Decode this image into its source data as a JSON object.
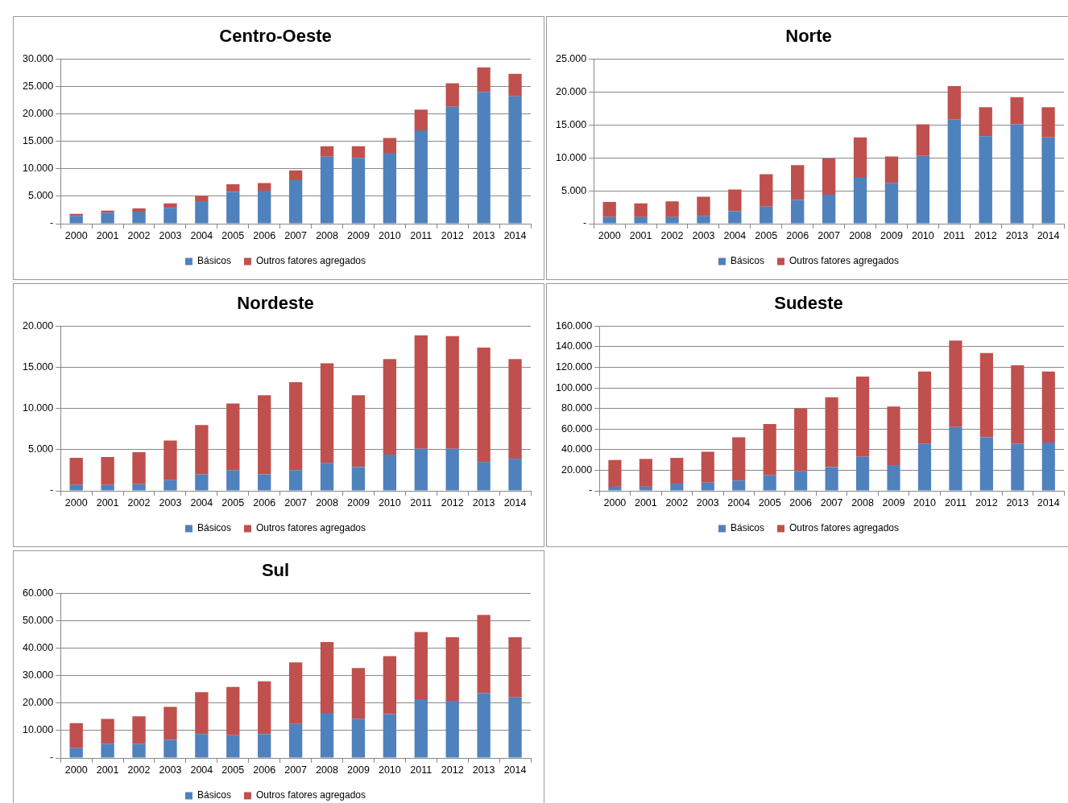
{
  "chart_data": [
    {
      "type": "bar",
      "title": "Centro-Oeste",
      "stacked": true,
      "grid": "y",
      "legend": "bottom",
      "categories": [
        "2000",
        "2001",
        "2002",
        "2003",
        "2004",
        "2005",
        "2006",
        "2007",
        "2008",
        "2009",
        "2010",
        "2011",
        "2012",
        "2013",
        "2014"
      ],
      "ylim": [
        0,
        30000
      ],
      "yticks": [
        {
          "value": 0,
          "label": "-"
        },
        {
          "value": 5000,
          "label": "5.000"
        },
        {
          "value": 10000,
          "label": "10.000"
        },
        {
          "value": 15000,
          "label": "15.000"
        },
        {
          "value": 20000,
          "label": "20.000"
        },
        {
          "value": 25000,
          "label": "25.000"
        },
        {
          "value": 30000,
          "label": "30.000"
        }
      ],
      "series": [
        {
          "name": "Básicos",
          "color": "#4f81bd",
          "values": [
            1400,
            2000,
            2200,
            2900,
            4100,
            5800,
            6000,
            7900,
            12200,
            12000,
            12900,
            17000,
            21300,
            24000,
            23200
          ]
        },
        {
          "name": "Outros fatores agregados",
          "color": "#c0504d",
          "values": [
            400,
            400,
            600,
            800,
            1000,
            1400,
            1400,
            1800,
            1900,
            2100,
            2700,
            3800,
            4300,
            4500,
            4100
          ]
        }
      ]
    },
    {
      "type": "bar",
      "title": "Norte",
      "stacked": true,
      "grid": "y",
      "legend": "bottom",
      "categories": [
        "2000",
        "2001",
        "2002",
        "2003",
        "2004",
        "2005",
        "2006",
        "2007",
        "2008",
        "2009",
        "2010",
        "2011",
        "2012",
        "2013",
        "2014"
      ],
      "ylim": [
        0,
        25000
      ],
      "yticks": [
        {
          "value": 0,
          "label": "-"
        },
        {
          "value": 5000,
          "label": "5.000"
        },
        {
          "value": 10000,
          "label": "10.000"
        },
        {
          "value": 15000,
          "label": "15.000"
        },
        {
          "value": 20000,
          "label": "20.000"
        },
        {
          "value": 25000,
          "label": "25.000"
        }
      ],
      "series": [
        {
          "name": "Básicos",
          "color": "#4f81bd",
          "values": [
            1000,
            1000,
            1000,
            1200,
            1900,
            2600,
            3600,
            4400,
            7100,
            6200,
            10300,
            15800,
            13300,
            15100,
            13100
          ]
        },
        {
          "name": "Outros fatores agregados",
          "color": "#c0504d",
          "values": [
            2300,
            2100,
            2400,
            2900,
            3300,
            4900,
            5300,
            5500,
            6000,
            4000,
            4800,
            5100,
            4400,
            4100,
            4600
          ]
        }
      ]
    },
    {
      "type": "bar",
      "title": "Nordeste",
      "stacked": true,
      "grid": "y",
      "legend": "bottom",
      "categories": [
        "2000",
        "2001",
        "2002",
        "2003",
        "2004",
        "2005",
        "2006",
        "2007",
        "2008",
        "2009",
        "2010",
        "2011",
        "2012",
        "2013",
        "2014"
      ],
      "ylim": [
        0,
        20000
      ],
      "yticks": [
        {
          "value": 0,
          "label": "-"
        },
        {
          "value": 5000,
          "label": "5.000"
        },
        {
          "value": 10000,
          "label": "10.000"
        },
        {
          "value": 15000,
          "label": "15.000"
        },
        {
          "value": 20000,
          "label": "20.000"
        }
      ],
      "series": [
        {
          "name": "Básicos",
          "color": "#4f81bd",
          "values": [
            700,
            700,
            800,
            1300,
            2000,
            2500,
            2000,
            2500,
            3400,
            2900,
            4400,
            5100,
            5100,
            3500,
            3900
          ]
        },
        {
          "name": "Outros fatores agregados",
          "color": "#c0504d",
          "values": [
            3300,
            3400,
            3900,
            4800,
            6000,
            8100,
            9600,
            10700,
            12100,
            8700,
            11600,
            13800,
            13700,
            13900,
            12100
          ]
        }
      ]
    },
    {
      "type": "bar",
      "title": "Sudeste",
      "stacked": true,
      "grid": "y",
      "legend": "bottom",
      "categories": [
        "2000",
        "2001",
        "2002",
        "2003",
        "2004",
        "2005",
        "2006",
        "2007",
        "2008",
        "2009",
        "2010",
        "2011",
        "2012",
        "2013",
        "2014"
      ],
      "ylim": [
        0,
        160000
      ],
      "yticks": [
        {
          "value": 0,
          "label": "-"
        },
        {
          "value": 20000,
          "label": "20.000"
        },
        {
          "value": 40000,
          "label": "40.000"
        },
        {
          "value": 60000,
          "label": "60.000"
        },
        {
          "value": 80000,
          "label": "80.000"
        },
        {
          "value": 100000,
          "label": "100.000"
        },
        {
          "value": 120000,
          "label": "120.000"
        },
        {
          "value": 140000,
          "label": "140.000"
        },
        {
          "value": 160000,
          "label": "160.000"
        }
      ],
      "series": [
        {
          "name": "Básicos",
          "color": "#4f81bd",
          "values": [
            4000,
            4000,
            7000,
            8000,
            10000,
            15000,
            19000,
            23000,
            33000,
            25000,
            46000,
            62000,
            52000,
            46000,
            47000
          ]
        },
        {
          "name": "Outros fatores agregados",
          "color": "#c0504d",
          "values": [
            26000,
            27000,
            25000,
            30000,
            42000,
            50000,
            61000,
            68000,
            78000,
            57000,
            70000,
            84000,
            82000,
            76000,
            69000
          ]
        }
      ]
    },
    {
      "type": "bar",
      "title": "Sul",
      "stacked": true,
      "grid": "y",
      "legend": "bottom",
      "categories": [
        "2000",
        "2001",
        "2002",
        "2003",
        "2004",
        "2005",
        "2006",
        "2007",
        "2008",
        "2009",
        "2010",
        "2011",
        "2012",
        "2013",
        "2014"
      ],
      "ylim": [
        0,
        60000
      ],
      "yticks": [
        {
          "value": 0,
          "label": "-"
        },
        {
          "value": 10000,
          "label": "10.000"
        },
        {
          "value": 20000,
          "label": "20.000"
        },
        {
          "value": 30000,
          "label": "30.000"
        },
        {
          "value": 40000,
          "label": "40.000"
        },
        {
          "value": 50000,
          "label": "50.000"
        },
        {
          "value": 60000,
          "label": "60.000"
        }
      ],
      "series": [
        {
          "name": "Básicos",
          "color": "#4f81bd",
          "values": [
            3600,
            5200,
            5200,
            6600,
            8700,
            8300,
            8700,
            12400,
            16400,
            14300,
            16000,
            21400,
            20800,
            23600,
            22100
          ]
        },
        {
          "name": "Outros fatores agregados",
          "color": "#c0504d",
          "values": [
            9100,
            9000,
            10000,
            12000,
            15300,
            17600,
            19200,
            22400,
            25800,
            18500,
            21100,
            24500,
            23200,
            28500,
            21900
          ]
        }
      ]
    }
  ]
}
